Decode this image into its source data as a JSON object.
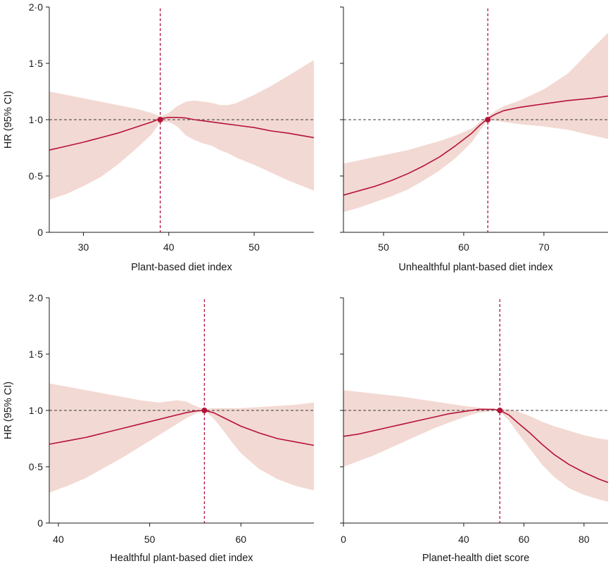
{
  "figure": {
    "ylabel": "HR (95% CI)",
    "colors": {
      "line": "#b5123a",
      "band": "#f3d9d3",
      "reference": "#3a3a3a",
      "vline": "#b5123a",
      "axis": "#1a1a1a"
    }
  },
  "chart_data": [
    {
      "type": "line",
      "xlabel": "Plant-based diet index",
      "ylabel": "HR (95% CI)",
      "xlim": [
        26,
        57
      ],
      "ylim": [
        0,
        2
      ],
      "xticks": [
        30,
        40,
        50
      ],
      "xtick_labels": [
        "30",
        "40",
        "50"
      ],
      "yticks": [
        0,
        0.5,
        1,
        1.5,
        2
      ],
      "ytick_labels": [
        "0",
        "0·5",
        "1·0",
        "1·5",
        "2·0"
      ],
      "reference_x": 39,
      "reference_hr": 1,
      "x": [
        26,
        28,
        30,
        32,
        34,
        36,
        38,
        39,
        40,
        41,
        42,
        43,
        44,
        45,
        46,
        47,
        48,
        50,
        52,
        54,
        57
      ],
      "hr": [
        0.73,
        0.765,
        0.8,
        0.84,
        0.88,
        0.93,
        0.98,
        1.01,
        1.02,
        1.02,
        1.015,
        1.0,
        0.99,
        0.98,
        0.97,
        0.96,
        0.95,
        0.93,
        0.9,
        0.88,
        0.84
      ],
      "lower": [
        0.29,
        0.34,
        0.41,
        0.49,
        0.6,
        0.73,
        0.87,
        0.98,
        0.98,
        0.94,
        0.86,
        0.82,
        0.79,
        0.77,
        0.73,
        0.7,
        0.66,
        0.6,
        0.53,
        0.46,
        0.37
      ],
      "upper": [
        1.25,
        1.22,
        1.19,
        1.16,
        1.13,
        1.1,
        1.06,
        1.03,
        1.06,
        1.12,
        1.16,
        1.17,
        1.16,
        1.15,
        1.13,
        1.13,
        1.15,
        1.22,
        1.3,
        1.39,
        1.53
      ]
    },
    {
      "type": "line",
      "xlabel": "Unhealthful plant-based diet index",
      "ylabel": "",
      "xlim": [
        45,
        78
      ],
      "ylim": [
        0,
        2
      ],
      "xticks": [
        50,
        60,
        70
      ],
      "xtick_labels": [
        "50",
        "60",
        "70"
      ],
      "yticks": [
        0,
        0.5,
        1,
        1.5,
        2
      ],
      "ytick_labels": [
        "",
        "",
        "",
        "",
        ""
      ],
      "reference_x": 63,
      "reference_hr": 1,
      "x": [
        45,
        47,
        49,
        51,
        53,
        55,
        57,
        59,
        61,
        62,
        63,
        64,
        65,
        67,
        70,
        73,
        76,
        78
      ],
      "hr": [
        0.33,
        0.37,
        0.41,
        0.46,
        0.52,
        0.59,
        0.67,
        0.77,
        0.88,
        0.95,
        1.01,
        1.05,
        1.08,
        1.11,
        1.14,
        1.17,
        1.19,
        1.21
      ],
      "lower": [
        0.18,
        0.22,
        0.27,
        0.32,
        0.38,
        0.46,
        0.55,
        0.66,
        0.8,
        0.9,
        1.0,
        0.99,
        0.98,
        0.96,
        0.94,
        0.91,
        0.86,
        0.83
      ],
      "upper": [
        0.61,
        0.64,
        0.67,
        0.7,
        0.73,
        0.77,
        0.81,
        0.86,
        0.92,
        0.98,
        1.03,
        1.08,
        1.12,
        1.17,
        1.27,
        1.41,
        1.63,
        1.77
      ]
    },
    {
      "type": "line",
      "xlabel": "Healthful plant-based diet index",
      "ylabel": "HR (95% CI)",
      "xlim": [
        39,
        68
      ],
      "ylim": [
        0,
        2
      ],
      "xticks": [
        40,
        50,
        60
      ],
      "xtick_labels": [
        "40",
        "50",
        "60"
      ],
      "yticks": [
        0,
        0.5,
        1,
        1.5,
        2
      ],
      "ytick_labels": [
        "0",
        "0·5",
        "1·0",
        "1·5",
        "2·0"
      ],
      "reference_x": 56,
      "reference_hr": 1,
      "x": [
        39,
        41,
        43,
        45,
        47,
        49,
        51,
        53,
        54,
        55,
        56,
        57,
        58,
        59,
        60,
        62,
        64,
        66,
        68
      ],
      "hr": [
        0.7,
        0.73,
        0.76,
        0.8,
        0.84,
        0.88,
        0.92,
        0.96,
        0.98,
        0.995,
        1.0,
        0.98,
        0.94,
        0.9,
        0.86,
        0.8,
        0.75,
        0.72,
        0.69
      ],
      "lower": [
        0.27,
        0.33,
        0.4,
        0.49,
        0.58,
        0.68,
        0.78,
        0.88,
        0.93,
        0.97,
        1.0,
        0.93,
        0.83,
        0.72,
        0.62,
        0.48,
        0.39,
        0.33,
        0.29
      ],
      "upper": [
        1.24,
        1.21,
        1.18,
        1.15,
        1.12,
        1.09,
        1.07,
        1.09,
        1.08,
        1.04,
        1.01,
        1.02,
        1.02,
        1.02,
        1.02,
        1.03,
        1.04,
        1.05,
        1.07
      ]
    },
    {
      "type": "line",
      "xlabel": "Planet-health diet score",
      "ylabel": "",
      "xlim": [
        0,
        88
      ],
      "ylim": [
        0,
        2
      ],
      "xticks": [
        0,
        40,
        60,
        80
      ],
      "xtick_labels": [
        "0",
        "40",
        "60",
        "80"
      ],
      "yticks": [
        0,
        0.5,
        1,
        1.5,
        2
      ],
      "ytick_labels": [
        "",
        "",
        "",
        "",
        ""
      ],
      "reference_x": 52,
      "reference_hr": 1,
      "x": [
        0,
        5,
        10,
        15,
        20,
        25,
        30,
        35,
        40,
        45,
        48,
        50,
        52,
        55,
        58,
        62,
        66,
        70,
        75,
        80,
        85,
        88
      ],
      "hr": [
        0.77,
        0.79,
        0.82,
        0.85,
        0.88,
        0.91,
        0.94,
        0.97,
        0.99,
        1.01,
        1.01,
        1.01,
        1.0,
        0.96,
        0.89,
        0.8,
        0.7,
        0.61,
        0.52,
        0.45,
        0.39,
        0.36
      ],
      "lower": [
        0.5,
        0.55,
        0.6,
        0.66,
        0.72,
        0.78,
        0.84,
        0.89,
        0.94,
        0.98,
        0.99,
        1.0,
        0.99,
        0.91,
        0.8,
        0.66,
        0.52,
        0.41,
        0.31,
        0.25,
        0.21,
        0.19
      ],
      "upper": [
        1.18,
        1.165,
        1.15,
        1.135,
        1.12,
        1.1,
        1.08,
        1.06,
        1.04,
        1.025,
        1.015,
        1.01,
        1.01,
        1.01,
        0.99,
        0.95,
        0.9,
        0.86,
        0.82,
        0.78,
        0.75,
        0.74
      ]
    }
  ]
}
